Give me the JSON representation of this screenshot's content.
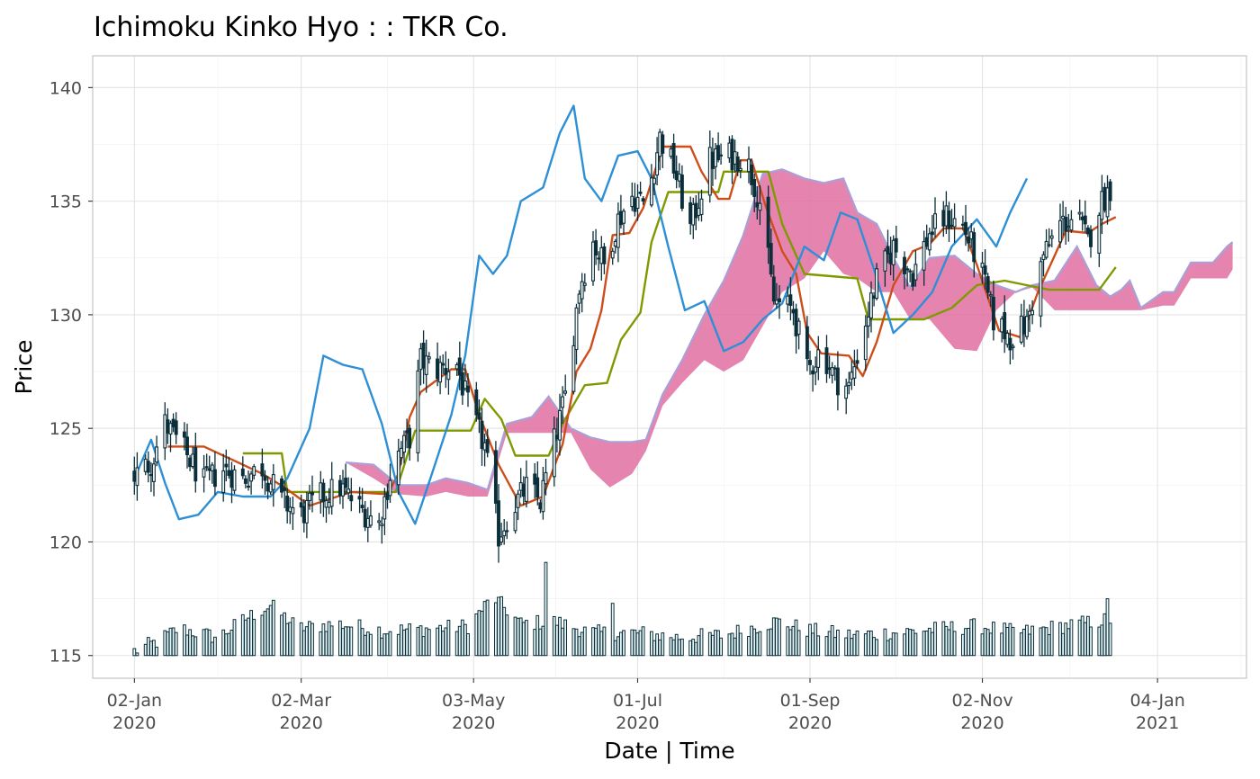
{
  "chart_data": {
    "type": "candlestick",
    "title": "Ichimoku Kinko Hyo : : TKR Co.",
    "xlabel": "Date | Time",
    "ylabel": "Price",
    "ylim": [
      114,
      141.4
    ],
    "xlim": [
      "2019-12-18",
      "2021-02-05"
    ],
    "y_ticks": [
      115,
      120,
      125,
      130,
      135,
      140
    ],
    "x_ticks": [
      {
        "date": "2020-01-02",
        "label1": "02-Jan",
        "label2": "2020"
      },
      {
        "date": "2020-03-02",
        "label1": "02-Mar",
        "label2": "2020"
      },
      {
        "date": "2020-05-03",
        "label1": "03-May",
        "label2": "2020"
      },
      {
        "date": "2020-07-01",
        "label1": "01-Jul",
        "label2": "2020"
      },
      {
        "date": "2020-09-01",
        "label1": "01-Sep",
        "label2": "2020"
      },
      {
        "date": "2020-11-02",
        "label1": "02-Nov",
        "label2": "2020"
      },
      {
        "date": "2021-01-04",
        "label1": "04-Jan",
        "label2": "2021"
      }
    ],
    "grid": true,
    "volume_baseline": 115,
    "colors": {
      "candle": "#0b2e3a",
      "candle_body": "#ffffff",
      "volume_fill": "#e8f7f7",
      "tenkan": "#cc4e1a",
      "kijun": "#7f9a00",
      "chikou": "#2d8fd5",
      "senkou": "#a9a0d8",
      "cloud": "#e06ea0",
      "grid_major": "#e3e3e3",
      "grid_minor": "#f0f0f0",
      "panel_border": "#c4c4c4",
      "axis_text": "#4d4d4d"
    },
    "close_keypoints": [
      [
        "2020-01-02",
        122.9
      ],
      [
        "2020-01-08",
        123.5
      ],
      [
        "2020-01-13",
        125.2
      ],
      [
        "2020-01-20",
        124.0
      ],
      [
        "2020-01-27",
        122.6
      ],
      [
        "2020-02-03",
        123.2
      ],
      [
        "2020-02-10",
        122.8
      ],
      [
        "2020-02-17",
        123.3
      ],
      [
        "2020-02-24",
        121.8
      ],
      [
        "2020-03-02",
        121.2
      ],
      [
        "2020-03-09",
        122.0
      ],
      [
        "2020-03-16",
        122.4
      ],
      [
        "2020-03-23",
        121.5
      ],
      [
        "2020-03-30",
        120.8
      ],
      [
        "2020-04-04",
        123.5
      ],
      [
        "2020-04-10",
        124.6
      ],
      [
        "2020-04-14",
        128.0
      ],
      [
        "2020-04-20",
        127.6
      ],
      [
        "2020-04-27",
        127.8
      ],
      [
        "2020-05-01",
        126.0
      ],
      [
        "2020-05-07",
        124.2
      ],
      [
        "2020-05-12",
        120.3
      ],
      [
        "2020-05-17",
        121.5
      ],
      [
        "2020-05-22",
        122.4
      ],
      [
        "2020-05-27",
        121.8
      ],
      [
        "2020-06-01",
        124.4
      ],
      [
        "2020-06-05",
        126.4
      ],
      [
        "2020-06-10",
        131.2
      ],
      [
        "2020-06-15",
        133.2
      ],
      [
        "2020-06-19",
        132.2
      ],
      [
        "2020-06-24",
        134.2
      ],
      [
        "2020-06-29",
        135.2
      ],
      [
        "2020-07-04",
        134.9
      ],
      [
        "2020-07-09",
        137.8
      ],
      [
        "2020-07-14",
        136.5
      ],
      [
        "2020-07-20",
        133.8
      ],
      [
        "2020-07-27",
        136.8
      ],
      [
        "2020-08-03",
        137.0
      ],
      [
        "2020-08-09",
        136.9
      ],
      [
        "2020-08-14",
        135.0
      ],
      [
        "2020-08-19",
        130.6
      ],
      [
        "2020-08-26",
        130.2
      ],
      [
        "2020-08-31",
        127.5
      ],
      [
        "2020-09-05",
        128.5
      ],
      [
        "2020-09-10",
        127.2
      ],
      [
        "2020-09-15",
        126.8
      ],
      [
        "2020-09-20",
        129.2
      ],
      [
        "2020-09-25",
        131.5
      ],
      [
        "2020-10-01",
        133.0
      ],
      [
        "2020-10-08",
        131.8
      ],
      [
        "2020-10-14",
        133.6
      ],
      [
        "2020-10-20",
        134.3
      ],
      [
        "2020-10-26",
        133.9
      ],
      [
        "2020-11-01",
        132.2
      ],
      [
        "2020-11-06",
        129.8
      ],
      [
        "2020-11-12",
        129.0
      ],
      [
        "2020-11-18",
        129.6
      ],
      [
        "2020-11-24",
        132.6
      ],
      [
        "2020-11-30",
        134.0
      ],
      [
        "2020-12-06",
        134.3
      ],
      [
        "2020-12-10",
        133.2
      ],
      [
        "2020-12-14",
        134.8
      ],
      [
        "2020-12-19",
        135.8
      ]
    ],
    "volume_keypoints": [
      [
        "2020-01-02",
        115.2
      ],
      [
        "2020-01-10",
        115.6
      ],
      [
        "2020-01-18",
        116.2
      ],
      [
        "2020-02-01",
        115.8
      ],
      [
        "2020-02-12",
        116.7
      ],
      [
        "2020-02-20",
        117.2
      ],
      [
        "2020-03-01",
        116.2
      ],
      [
        "2020-03-15",
        116.4
      ],
      [
        "2020-04-01",
        116.1
      ],
      [
        "2020-04-20",
        116.2
      ],
      [
        "2020-05-01",
        116.3
      ],
      [
        "2020-05-10",
        117.6
      ],
      [
        "2020-05-20",
        116.4
      ],
      [
        "2020-06-01",
        116.5
      ],
      [
        "2020-06-15",
        116.0
      ],
      [
        "2020-07-01",
        116.0
      ],
      [
        "2020-07-15",
        115.8
      ],
      [
        "2020-08-01",
        115.9
      ],
      [
        "2020-08-20",
        116.5
      ],
      [
        "2020-09-01",
        116.1
      ],
      [
        "2020-09-15",
        115.9
      ],
      [
        "2020-10-01",
        116.0
      ],
      [
        "2020-10-20",
        116.2
      ],
      [
        "2020-11-01",
        116.3
      ],
      [
        "2020-11-15",
        116.0
      ],
      [
        "2020-12-01",
        116.3
      ],
      [
        "2020-12-19",
        116.6
      ]
    ],
    "volume_spikes": [
      [
        "2020-02-15",
        118.1
      ],
      [
        "2020-05-10",
        119.0
      ],
      [
        "2020-05-29",
        119.1
      ],
      [
        "2020-06-22",
        117.3
      ],
      [
        "2020-08-15",
        118.1
      ],
      [
        "2020-12-17",
        117.5
      ]
    ],
    "tenkan_keypoints": [
      [
        "2020-01-14",
        124.2
      ],
      [
        "2020-01-27",
        124.2
      ],
      [
        "2020-02-17",
        123.0
      ],
      [
        "2020-02-25",
        122.4
      ],
      [
        "2020-03-05",
        121.6
      ],
      [
        "2020-03-20",
        122.2
      ],
      [
        "2020-04-02",
        122.1
      ],
      [
        "2020-04-06",
        123.0
      ],
      [
        "2020-04-10",
        125.5
      ],
      [
        "2020-04-14",
        126.6
      ],
      [
        "2020-04-25",
        127.6
      ],
      [
        "2020-04-30",
        127.6
      ],
      [
        "2020-05-05",
        125.6
      ],
      [
        "2020-05-12",
        123.4
      ],
      [
        "2020-05-20",
        121.6
      ],
      [
        "2020-05-28",
        122.0
      ],
      [
        "2020-06-04",
        124.3
      ],
      [
        "2020-06-09",
        127.5
      ],
      [
        "2020-06-14",
        128.5
      ],
      [
        "2020-06-18",
        130.2
      ],
      [
        "2020-06-22",
        133.5
      ],
      [
        "2020-06-28",
        133.6
      ],
      [
        "2020-07-03",
        134.7
      ],
      [
        "2020-07-10",
        137.4
      ],
      [
        "2020-07-20",
        137.4
      ],
      [
        "2020-07-24",
        136.3
      ],
      [
        "2020-07-30",
        135.1
      ],
      [
        "2020-08-03",
        135.1
      ],
      [
        "2020-08-07",
        136.8
      ],
      [
        "2020-08-11",
        136.8
      ],
      [
        "2020-08-16",
        134.8
      ],
      [
        "2020-08-22",
        132.8
      ],
      [
        "2020-08-27",
        131.8
      ],
      [
        "2020-08-31",
        129.2
      ],
      [
        "2020-09-05",
        128.3
      ],
      [
        "2020-09-15",
        128.2
      ],
      [
        "2020-09-20",
        127.3
      ],
      [
        "2020-09-25",
        128.8
      ],
      [
        "2020-10-01",
        131.3
      ],
      [
        "2020-10-08",
        132.8
      ],
      [
        "2020-10-14",
        133.1
      ],
      [
        "2020-10-19",
        133.8
      ],
      [
        "2020-10-26",
        133.8
      ],
      [
        "2020-10-31",
        132.2
      ],
      [
        "2020-11-08",
        129.3
      ],
      [
        "2020-11-16",
        129.0
      ],
      [
        "2020-11-22",
        131.0
      ],
      [
        "2020-11-28",
        132.6
      ],
      [
        "2020-12-02",
        133.7
      ],
      [
        "2020-12-10",
        133.6
      ],
      [
        "2020-12-15",
        134.0
      ],
      [
        "2020-12-20",
        134.3
      ]
    ],
    "kijun_keypoints": [
      [
        "2020-02-10",
        123.9
      ],
      [
        "2020-02-24",
        123.9
      ],
      [
        "2020-02-26",
        122.2
      ],
      [
        "2020-03-24",
        122.2
      ],
      [
        "2020-04-05",
        122.2
      ],
      [
        "2020-04-12",
        124.9
      ],
      [
        "2020-05-02",
        124.9
      ],
      [
        "2020-05-07",
        126.3
      ],
      [
        "2020-05-13",
        125.4
      ],
      [
        "2020-05-18",
        123.8
      ],
      [
        "2020-05-30",
        123.8
      ],
      [
        "2020-06-04",
        125.2
      ],
      [
        "2020-06-12",
        126.9
      ],
      [
        "2020-06-20",
        127.0
      ],
      [
        "2020-06-25",
        128.9
      ],
      [
        "2020-07-02",
        130.1
      ],
      [
        "2020-07-06",
        133.2
      ],
      [
        "2020-07-12",
        135.4
      ],
      [
        "2020-07-30",
        135.4
      ],
      [
        "2020-08-01",
        136.3
      ],
      [
        "2020-08-17",
        136.3
      ],
      [
        "2020-08-22",
        134.0
      ],
      [
        "2020-08-30",
        131.8
      ],
      [
        "2020-09-18",
        131.6
      ],
      [
        "2020-09-22",
        129.8
      ],
      [
        "2020-10-12",
        129.8
      ],
      [
        "2020-10-22",
        130.3
      ],
      [
        "2020-10-31",
        131.3
      ],
      [
        "2020-11-10",
        131.5
      ],
      [
        "2020-11-26",
        131.1
      ],
      [
        "2020-12-14",
        131.1
      ],
      [
        "2020-12-20",
        132.1
      ]
    ],
    "chikou_keypoints": [
      [
        "2020-01-02",
        122.8
      ],
      [
        "2020-01-08",
        124.5
      ],
      [
        "2020-01-13",
        122.6
      ],
      [
        "2020-01-18",
        121.0
      ],
      [
        "2020-01-25",
        121.2
      ],
      [
        "2020-02-01",
        122.2
      ],
      [
        "2020-02-10",
        122.0
      ],
      [
        "2020-02-20",
        122.0
      ],
      [
        "2020-02-26",
        122.8
      ],
      [
        "2020-03-05",
        125.0
      ],
      [
        "2020-03-10",
        128.2
      ],
      [
        "2020-03-17",
        127.8
      ],
      [
        "2020-03-24",
        127.6
      ],
      [
        "2020-03-31",
        125.2
      ],
      [
        "2020-04-06",
        122.2
      ],
      [
        "2020-04-12",
        120.8
      ],
      [
        "2020-04-18",
        123.0
      ],
      [
        "2020-04-25",
        125.6
      ],
      [
        "2020-04-30",
        128.2
      ],
      [
        "2020-05-05",
        132.6
      ],
      [
        "2020-05-10",
        131.8
      ],
      [
        "2020-05-15",
        132.6
      ],
      [
        "2020-05-20",
        135.0
      ],
      [
        "2020-05-28",
        135.6
      ],
      [
        "2020-06-03",
        138.0
      ],
      [
        "2020-06-08",
        139.2
      ],
      [
        "2020-06-12",
        136.0
      ],
      [
        "2020-06-18",
        135.0
      ],
      [
        "2020-06-24",
        137.0
      ],
      [
        "2020-07-01",
        137.2
      ],
      [
        "2020-07-06",
        136.0
      ],
      [
        "2020-07-12",
        133.0
      ],
      [
        "2020-07-18",
        130.2
      ],
      [
        "2020-07-25",
        130.6
      ],
      [
        "2020-08-01",
        128.4
      ],
      [
        "2020-08-08",
        128.8
      ],
      [
        "2020-08-15",
        129.8
      ],
      [
        "2020-08-22",
        130.5
      ],
      [
        "2020-08-30",
        133.0
      ],
      [
        "2020-09-06",
        132.4
      ],
      [
        "2020-09-12",
        134.5
      ],
      [
        "2020-09-18",
        134.2
      ],
      [
        "2020-09-24",
        132.0
      ],
      [
        "2020-10-01",
        129.2
      ],
      [
        "2020-10-08",
        130.0
      ],
      [
        "2020-10-15",
        131.0
      ],
      [
        "2020-10-22",
        133.0
      ],
      [
        "2020-10-31",
        134.2
      ],
      [
        "2020-11-07",
        133.0
      ],
      [
        "2020-11-12",
        134.5
      ],
      [
        "2020-11-18",
        136.0
      ]
    ],
    "cloud_keypoints": [
      [
        "2020-03-18",
        123.5,
        123.5
      ],
      [
        "2020-03-28",
        123.4,
        122.8
      ],
      [
        "2020-04-06",
        122.5,
        122.1
      ],
      [
        "2020-04-16",
        122.5,
        122.0
      ],
      [
        "2020-04-23",
        122.8,
        122.2
      ],
      [
        "2020-05-01",
        122.6,
        122.0
      ],
      [
        "2020-05-08",
        122.3,
        122.0
      ],
      [
        "2020-05-15",
        125.2,
        124.8
      ],
      [
        "2020-05-24",
        125.5,
        124.8
      ],
      [
        "2020-05-30",
        126.4,
        124.8
      ],
      [
        "2020-06-07",
        125.0,
        124.8
      ],
      [
        "2020-06-14",
        124.6,
        123.2
      ],
      [
        "2020-06-21",
        124.4,
        122.4
      ],
      [
        "2020-06-29",
        124.4,
        123.0
      ],
      [
        "2020-07-04",
        124.5,
        124.0
      ],
      [
        "2020-07-10",
        126.5,
        126.0
      ],
      [
        "2020-07-17",
        128.0,
        127.0
      ],
      [
        "2020-07-25",
        130.0,
        128.0
      ],
      [
        "2020-08-01",
        131.5,
        127.5
      ],
      [
        "2020-08-08",
        133.5,
        128.0
      ],
      [
        "2020-08-15",
        136.2,
        129.5
      ],
      [
        "2020-08-22",
        136.4,
        131.0
      ],
      [
        "2020-08-30",
        136.0,
        131.6
      ],
      [
        "2020-09-06",
        135.8,
        132.8
      ],
      [
        "2020-09-13",
        136.0,
        131.8
      ],
      [
        "2020-09-18",
        134.5,
        131.6
      ],
      [
        "2020-09-25",
        134.0,
        131.0
      ],
      [
        "2020-10-01",
        132.5,
        131.0
      ],
      [
        "2020-10-07",
        131.2,
        129.8
      ],
      [
        "2020-10-14",
        132.5,
        129.8
      ],
      [
        "2020-10-23",
        132.6,
        128.5
      ],
      [
        "2020-10-31",
        131.8,
        128.4
      ],
      [
        "2020-11-07",
        131.3,
        130.2
      ],
      [
        "2020-11-14",
        131.0,
        131.0
      ],
      [
        "2020-11-20",
        131.3,
        131.2
      ],
      [
        "2020-11-28",
        131.5,
        130.2
      ],
      [
        "2020-12-06",
        133.0,
        130.2
      ],
      [
        "2020-12-13",
        131.3,
        130.2
      ],
      [
        "2020-12-18",
        130.8,
        130.2
      ],
      [
        "2020-12-22",
        131.1,
        130.2
      ],
      [
        "2020-12-25",
        131.5,
        130.2
      ],
      [
        "2020-12-29",
        130.3,
        130.2
      ],
      [
        "2021-01-06",
        131.0,
        130.4
      ],
      [
        "2021-01-10",
        131.0,
        130.4
      ],
      [
        "2021-01-16",
        132.3,
        131.6
      ],
      [
        "2021-01-24",
        132.3,
        131.6
      ],
      [
        "2021-01-29",
        133.0,
        131.6
      ],
      [
        "2021-01-31",
        133.2,
        132.0
      ]
    ]
  }
}
